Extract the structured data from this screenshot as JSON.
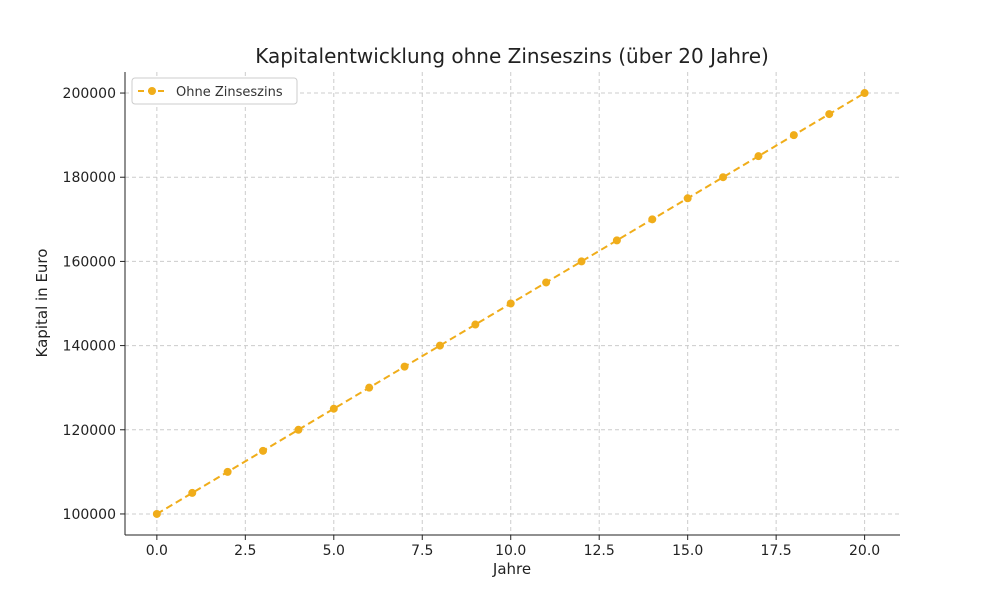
{
  "chart_data": {
    "type": "line",
    "title": "Kapitalentwicklung ohne Zinseszins (über 20 Jahre)",
    "xlabel": "Jahre",
    "ylabel": "Kapital in Euro",
    "xlim": [
      -0.9,
      21.0
    ],
    "ylim": [
      95000,
      205000
    ],
    "xticks": [
      0.0,
      2.5,
      5.0,
      7.5,
      10.0,
      12.5,
      15.0,
      17.5,
      20.0
    ],
    "xtick_labels": [
      "0.0",
      "2.5",
      "5.0",
      "7.5",
      "10.0",
      "12.5",
      "15.0",
      "17.5",
      "20.0"
    ],
    "yticks": [
      100000,
      120000,
      140000,
      160000,
      180000,
      200000
    ],
    "ytick_labels": [
      "100000",
      "120000",
      "140000",
      "160000",
      "180000",
      "200000"
    ],
    "grid": true,
    "legend_position": "top-left",
    "x": [
      0,
      1,
      2,
      3,
      4,
      5,
      6,
      7,
      8,
      9,
      10,
      11,
      12,
      13,
      14,
      15,
      16,
      17,
      18,
      19,
      20
    ],
    "series": [
      {
        "name": "Ohne Zinseszins",
        "color": "#f0ad1a",
        "line_style": "dashed",
        "marker": "circle",
        "values": [
          100000,
          105000,
          110000,
          115000,
          120000,
          125000,
          130000,
          135000,
          140000,
          145000,
          150000,
          155000,
          160000,
          165000,
          170000,
          175000,
          180000,
          185000,
          190000,
          195000,
          200000
        ]
      }
    ]
  }
}
